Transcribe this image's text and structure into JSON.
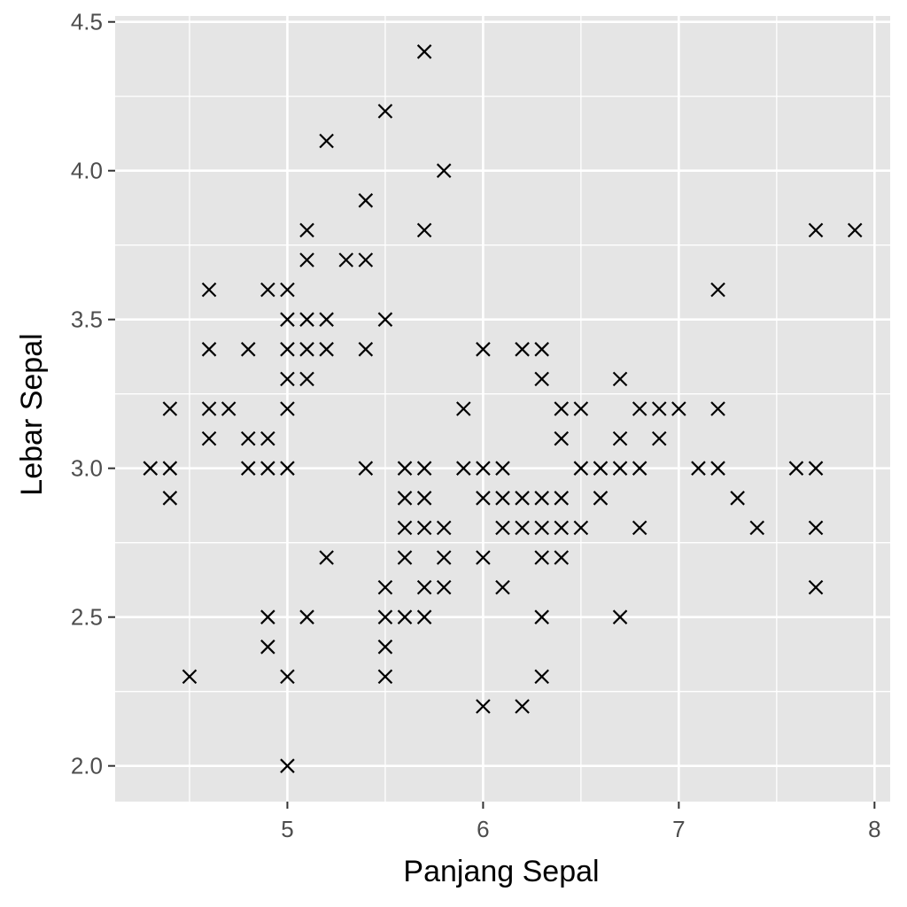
{
  "chart_data": {
    "type": "scatter",
    "title": "",
    "xlabel": "Panjang Sepal",
    "ylabel": "Lebar Sepal",
    "xlim": [
      4.12,
      8.08
    ],
    "ylim": [
      1.88,
      4.52
    ],
    "x_ticks": [
      5,
      6,
      7,
      8
    ],
    "x_tick_labels": [
      "5",
      "6",
      "7",
      "8"
    ],
    "y_ticks": [
      2.0,
      2.5,
      3.0,
      3.5,
      4.0,
      4.5
    ],
    "y_tick_labels": [
      "2.0",
      "2.5",
      "3.0",
      "3.5",
      "4.0",
      "4.5"
    ],
    "grid": true,
    "marker": "x",
    "colors": {
      "panel_background": "#e5e5e5",
      "grid": "#ffffff",
      "marker": "#000000",
      "tick_text": "#4d4d4d",
      "axis_title": "#000000"
    },
    "points": [
      [
        5.7,
        4.4
      ],
      [
        5.5,
        4.2
      ],
      [
        5.2,
        4.1
      ],
      [
        5.8,
        4.0
      ],
      [
        5.4,
        3.9
      ],
      [
        5.1,
        3.8
      ],
      [
        5.7,
        3.8
      ],
      [
        7.7,
        3.8
      ],
      [
        7.9,
        3.8
      ],
      [
        5.1,
        3.7
      ],
      [
        5.3,
        3.7
      ],
      [
        5.4,
        3.7
      ],
      [
        4.6,
        3.6
      ],
      [
        4.9,
        3.6
      ],
      [
        5.0,
        3.6
      ],
      [
        7.2,
        3.6
      ],
      [
        5.0,
        3.5
      ],
      [
        5.1,
        3.5
      ],
      [
        5.2,
        3.5
      ],
      [
        5.5,
        3.5
      ],
      [
        4.6,
        3.4
      ],
      [
        4.8,
        3.4
      ],
      [
        5.0,
        3.4
      ],
      [
        5.1,
        3.4
      ],
      [
        5.2,
        3.4
      ],
      [
        5.4,
        3.4
      ],
      [
        6.0,
        3.4
      ],
      [
        6.2,
        3.4
      ],
      [
        6.3,
        3.4
      ],
      [
        5.0,
        3.3
      ],
      [
        5.1,
        3.3
      ],
      [
        6.3,
        3.3
      ],
      [
        6.7,
        3.3
      ],
      [
        4.4,
        3.2
      ],
      [
        4.6,
        3.2
      ],
      [
        4.7,
        3.2
      ],
      [
        5.0,
        3.2
      ],
      [
        5.9,
        3.2
      ],
      [
        6.4,
        3.2
      ],
      [
        6.5,
        3.2
      ],
      [
        6.8,
        3.2
      ],
      [
        6.9,
        3.2
      ],
      [
        7.0,
        3.2
      ],
      [
        7.2,
        3.2
      ],
      [
        4.6,
        3.1
      ],
      [
        4.8,
        3.1
      ],
      [
        4.9,
        3.1
      ],
      [
        6.4,
        3.1
      ],
      [
        6.7,
        3.1
      ],
      [
        6.9,
        3.1
      ],
      [
        4.3,
        3.0
      ],
      [
        4.4,
        3.0
      ],
      [
        4.8,
        3.0
      ],
      [
        4.9,
        3.0
      ],
      [
        5.0,
        3.0
      ],
      [
        5.4,
        3.0
      ],
      [
        5.6,
        3.0
      ],
      [
        5.7,
        3.0
      ],
      [
        5.9,
        3.0
      ],
      [
        6.0,
        3.0
      ],
      [
        6.1,
        3.0
      ],
      [
        6.5,
        3.0
      ],
      [
        6.6,
        3.0
      ],
      [
        6.7,
        3.0
      ],
      [
        6.8,
        3.0
      ],
      [
        7.1,
        3.0
      ],
      [
        7.2,
        3.0
      ],
      [
        7.6,
        3.0
      ],
      [
        7.7,
        3.0
      ],
      [
        4.4,
        2.9
      ],
      [
        5.6,
        2.9
      ],
      [
        5.7,
        2.9
      ],
      [
        6.0,
        2.9
      ],
      [
        6.1,
        2.9
      ],
      [
        6.2,
        2.9
      ],
      [
        6.3,
        2.9
      ],
      [
        6.4,
        2.9
      ],
      [
        6.6,
        2.9
      ],
      [
        7.3,
        2.9
      ],
      [
        5.6,
        2.8
      ],
      [
        5.7,
        2.8
      ],
      [
        5.8,
        2.8
      ],
      [
        6.1,
        2.8
      ],
      [
        6.2,
        2.8
      ],
      [
        6.3,
        2.8
      ],
      [
        6.4,
        2.8
      ],
      [
        6.5,
        2.8
      ],
      [
        6.8,
        2.8
      ],
      [
        7.4,
        2.8
      ],
      [
        7.7,
        2.8
      ],
      [
        5.2,
        2.7
      ],
      [
        5.6,
        2.7
      ],
      [
        5.8,
        2.7
      ],
      [
        6.0,
        2.7
      ],
      [
        6.3,
        2.7
      ],
      [
        6.4,
        2.7
      ],
      [
        5.5,
        2.6
      ],
      [
        5.7,
        2.6
      ],
      [
        5.8,
        2.6
      ],
      [
        6.1,
        2.6
      ],
      [
        7.7,
        2.6
      ],
      [
        4.9,
        2.5
      ],
      [
        5.1,
        2.5
      ],
      [
        5.5,
        2.5
      ],
      [
        5.6,
        2.5
      ],
      [
        5.7,
        2.5
      ],
      [
        6.3,
        2.5
      ],
      [
        6.7,
        2.5
      ],
      [
        4.9,
        2.4
      ],
      [
        5.5,
        2.4
      ],
      [
        4.5,
        2.3
      ],
      [
        5.0,
        2.3
      ],
      [
        5.5,
        2.3
      ],
      [
        6.3,
        2.3
      ],
      [
        6.0,
        2.2
      ],
      [
        6.2,
        2.2
      ],
      [
        5.0,
        2.0
      ]
    ]
  }
}
